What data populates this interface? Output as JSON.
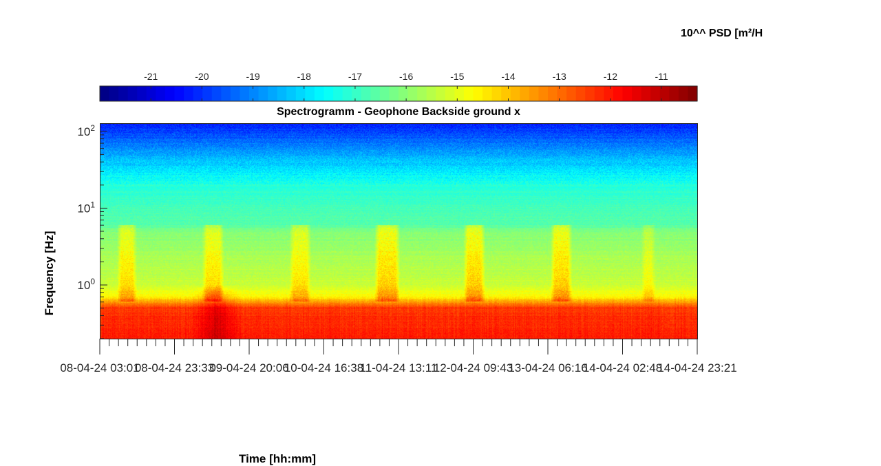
{
  "chart_data": {
    "type": "heatmap",
    "title": "Spectrogramm - Geophone Backside ground x",
    "xlabel": "Time [hh:mm]",
    "ylabel": "Frequency [Hz]",
    "y_scale": "log",
    "ylim": [
      0.2,
      125
    ],
    "y_ticks": [
      {
        "value": 1,
        "base": "10",
        "exp": "0"
      },
      {
        "value": 10,
        "base": "10",
        "exp": "1"
      },
      {
        "value": 100,
        "base": "10",
        "exp": "2"
      }
    ],
    "x_tick_labels": [
      "08-04-24  03:01",
      "08-04-24  23:33",
      "09-04-24  20:06",
      "10-04-24  16:38",
      "11-04-24  13:11",
      "12-04-24  09:43",
      "13-04-24  06:16",
      "14-04-24  02:48",
      "14-04-24  23:21"
    ],
    "colorbar": {
      "label": "10^^ PSD [m²/H",
      "colormap": "jet",
      "range": [
        -22,
        -10.3
      ],
      "ticks": [
        "-21",
        "-20",
        "-19",
        "-18",
        "-17",
        "-16",
        "-15",
        "-14",
        "-13",
        "-12",
        "-11"
      ],
      "tick_values": [
        -21,
        -20,
        -19,
        -18,
        -17,
        -16,
        -15,
        -14,
        -13,
        -12,
        -11
      ]
    },
    "psd_profile": {
      "frequency_hz": [
        0.2,
        0.3,
        0.5,
        0.7,
        1.0,
        2.0,
        5.0,
        6.0,
        10,
        20,
        50,
        100,
        125
      ],
      "log10_psd": [
        -12.1,
        -12.2,
        -12.4,
        -14.6,
        -15.3,
        -15.6,
        -16.1,
        -16.6,
        -16.8,
        -17.2,
        -18.6,
        -19.8,
        -20.2
      ]
    },
    "activity_periods": [
      {
        "start": "08-04-24  07:30",
        "end": "08-04-24  13:00",
        "log10_psd_increase": 1.3
      },
      {
        "start": "09-04-24  07:00",
        "end": "09-04-24  13:00",
        "log10_psd_increase": 1.3
      },
      {
        "start": "10-04-24  07:00",
        "end": "10-04-24  13:00",
        "log10_psd_increase": 1.2
      },
      {
        "start": "11-04-24  06:30",
        "end": "11-04-24  13:30",
        "log10_psd_increase": 1.5
      },
      {
        "start": "12-04-24  07:00",
        "end": "12-04-24  13:00",
        "log10_psd_increase": 1.5
      },
      {
        "start": "13-04-24  07:00",
        "end": "13-04-24  13:00",
        "log10_psd_increase": 1.5
      },
      {
        "start": "14-04-24  08:00",
        "end": "14-04-24  12:00",
        "log10_psd_increase": 0.8
      }
    ],
    "strong_low_frequency_event": {
      "start": "09-04-24  04:00",
      "end": "09-04-24  18:00",
      "log10_psd_increase": 1.0
    }
  }
}
